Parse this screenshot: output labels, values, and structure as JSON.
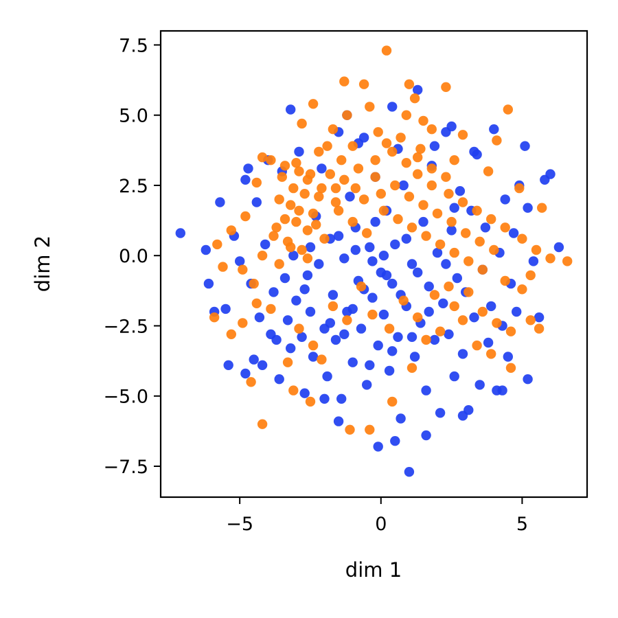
{
  "chart_data": {
    "type": "scatter",
    "title": "",
    "xlabel": "dim 1",
    "ylabel": "dim 2",
    "xlim": [
      -7.8,
      7.3
    ],
    "ylim": [
      -8.6,
      8.0
    ],
    "xticks": [
      -5,
      0,
      5
    ],
    "xtick_labels": [
      "−5",
      "0",
      "5"
    ],
    "yticks": [
      -7.5,
      -5.0,
      -2.5,
      0.0,
      2.5,
      5.0,
      7.5
    ],
    "ytick_labels": [
      "−7.5",
      "−5.0",
      "−2.5",
      "0.0",
      "2.5",
      "5.0",
      "7.5"
    ],
    "grid": false,
    "legend": "none",
    "series": [
      {
        "color": "#1f3ff0",
        "points": [
          [
            -7.1,
            0.8
          ],
          [
            -6.2,
            0.2
          ],
          [
            -6.1,
            -1.0
          ],
          [
            -5.9,
            -2.0
          ],
          [
            -5.7,
            1.9
          ],
          [
            -5.5,
            -1.9
          ],
          [
            -5.4,
            -3.9
          ],
          [
            -5.2,
            0.7
          ],
          [
            -5.0,
            -0.2
          ],
          [
            -4.8,
            2.7
          ],
          [
            -4.7,
            3.1
          ],
          [
            -4.6,
            -1.0
          ],
          [
            -4.5,
            -3.7
          ],
          [
            -4.4,
            1.9
          ],
          [
            -4.3,
            -2.2
          ],
          [
            -4.2,
            -3.9
          ],
          [
            -4.1,
            0.4
          ],
          [
            -4.0,
            3.4
          ],
          [
            -3.9,
            -2.8
          ],
          [
            -3.8,
            -1.3
          ],
          [
            -3.7,
            -3.0
          ],
          [
            -3.6,
            -4.4
          ],
          [
            -3.5,
            3.0
          ],
          [
            -3.4,
            -0.8
          ],
          [
            -3.3,
            -2.3
          ],
          [
            -3.2,
            -3.3
          ],
          [
            -3.1,
            0.0
          ],
          [
            -3.0,
            -1.6
          ],
          [
            -2.9,
            3.7
          ],
          [
            -2.8,
            -2.9
          ],
          [
            -2.7,
            -4.9
          ],
          [
            -2.6,
            -0.7
          ],
          [
            -2.5,
            -2.0
          ],
          [
            -2.4,
            -3.6
          ],
          [
            -2.3,
            1.4
          ],
          [
            -2.2,
            -0.3
          ],
          [
            -2.1,
            3.1
          ],
          [
            -2.0,
            -2.6
          ],
          [
            -1.9,
            -4.3
          ],
          [
            -1.8,
            0.6
          ],
          [
            -1.7,
            -1.4
          ],
          [
            -1.6,
            -3.0
          ],
          [
            -1.5,
            4.4
          ],
          [
            -1.4,
            -5.1
          ],
          [
            -1.3,
            -0.1
          ],
          [
            -1.2,
            -2.0
          ],
          [
            -1.1,
            2.1
          ],
          [
            -1.0,
            -3.8
          ],
          [
            -0.9,
            1.0
          ],
          [
            -0.8,
            -0.9
          ],
          [
            -0.7,
            -2.6
          ],
          [
            -0.6,
            4.2
          ],
          [
            -0.5,
            -4.6
          ],
          [
            -0.4,
            0.3
          ],
          [
            -0.3,
            -1.5
          ],
          [
            -0.2,
            2.8
          ],
          [
            -0.1,
            -3.2
          ],
          [
            0.0,
            -0.6
          ],
          [
            0.1,
            -2.1
          ],
          [
            0.2,
            1.6
          ],
          [
            0.3,
            -4.1
          ],
          [
            0.4,
            -1.0
          ],
          [
            0.5,
            0.4
          ],
          [
            0.6,
            -2.9
          ],
          [
            0.7,
            -5.8
          ],
          [
            0.8,
            2.5
          ],
          [
            0.9,
            -1.8
          ],
          [
            1.0,
            -7.7
          ],
          [
            1.1,
            -0.3
          ],
          [
            1.2,
            -3.6
          ],
          [
            1.3,
            5.9
          ],
          [
            1.4,
            -2.4
          ],
          [
            1.5,
            1.2
          ],
          [
            1.6,
            -4.8
          ],
          [
            1.7,
            -1.1
          ],
          [
            1.8,
            3.2
          ],
          [
            1.9,
            -3.0
          ],
          [
            2.0,
            0.1
          ],
          [
            2.1,
            -5.6
          ],
          [
            2.2,
            -1.7
          ],
          [
            2.3,
            4.4
          ],
          [
            2.4,
            -2.8
          ],
          [
            2.5,
            0.9
          ],
          [
            2.6,
            -4.3
          ],
          [
            2.7,
            -0.8
          ],
          [
            2.8,
            2.3
          ],
          [
            2.9,
            -3.5
          ],
          [
            3.0,
            -1.3
          ],
          [
            3.1,
            -5.5
          ],
          [
            3.2,
            1.6
          ],
          [
            3.3,
            -2.2
          ],
          [
            3.4,
            3.6
          ],
          [
            3.5,
            -4.6
          ],
          [
            3.6,
            -0.5
          ],
          [
            3.7,
            1.0
          ],
          [
            3.8,
            -3.1
          ],
          [
            3.9,
            -1.8
          ],
          [
            4.0,
            4.5
          ],
          [
            4.1,
            -4.8
          ],
          [
            4.2,
            0.1
          ],
          [
            4.3,
            -2.5
          ],
          [
            4.4,
            2.0
          ],
          [
            4.5,
            -3.6
          ],
          [
            4.6,
            -1.0
          ],
          [
            4.7,
            0.8
          ],
          [
            4.8,
            -2.0
          ],
          [
            4.9,
            2.5
          ],
          [
            5.1,
            3.9
          ],
          [
            5.2,
            1.7
          ],
          [
            5.4,
            -0.2
          ],
          [
            5.6,
            -2.2
          ],
          [
            5.8,
            2.7
          ],
          [
            6.0,
            2.9
          ],
          [
            6.3,
            0.3
          ],
          [
            -0.1,
            -6.8
          ],
          [
            0.5,
            -6.6
          ],
          [
            1.6,
            -6.4
          ],
          [
            -1.5,
            -5.9
          ],
          [
            -2.0,
            -5.1
          ],
          [
            2.9,
            -5.7
          ],
          [
            4.3,
            -4.8
          ],
          [
            5.2,
            -4.4
          ],
          [
            -4.8,
            -4.2
          ],
          [
            -0.8,
            4.0
          ],
          [
            0.6,
            3.8
          ],
          [
            1.9,
            3.9
          ],
          [
            -3.2,
            5.2
          ],
          [
            -1.2,
            5.0
          ],
          [
            0.4,
            5.3
          ],
          [
            2.5,
            4.6
          ],
          [
            3.3,
            3.7
          ],
          [
            -0.3,
            -0.2
          ],
          [
            0.2,
            -0.7
          ],
          [
            -0.6,
            -1.2
          ],
          [
            0.7,
            -1.4
          ],
          [
            -1.0,
            -1.9
          ],
          [
            0.9,
            0.6
          ],
          [
            -1.5,
            0.7
          ],
          [
            1.3,
            -0.6
          ],
          [
            -0.2,
            1.2
          ],
          [
            0.1,
            0.0
          ],
          [
            -0.9,
            0.2
          ],
          [
            1.7,
            -2.0
          ],
          [
            -1.8,
            -2.4
          ],
          [
            2.3,
            -0.3
          ],
          [
            -2.5,
            0.3
          ],
          [
            0.4,
            -3.4
          ],
          [
            -0.4,
            -3.9
          ],
          [
            1.1,
            -2.9
          ],
          [
            -1.3,
            -2.8
          ],
          [
            2.6,
            1.7
          ],
          [
            -2.7,
            -1.2
          ]
        ]
      },
      {
        "color": "#ff7f0e",
        "points": [
          [
            0.2,
            7.3
          ],
          [
            -1.3,
            6.2
          ],
          [
            -0.6,
            6.1
          ],
          [
            1.0,
            6.1
          ],
          [
            2.3,
            6.0
          ],
          [
            1.2,
            5.6
          ],
          [
            -2.4,
            5.4
          ],
          [
            -1.2,
            5.0
          ],
          [
            -0.4,
            5.3
          ],
          [
            0.9,
            5.0
          ],
          [
            1.5,
            4.8
          ],
          [
            4.5,
            5.2
          ],
          [
            -2.8,
            4.7
          ],
          [
            -1.7,
            4.5
          ],
          [
            -0.1,
            4.4
          ],
          [
            1.8,
            4.5
          ],
          [
            2.9,
            4.3
          ],
          [
            4.1,
            4.1
          ],
          [
            -4.2,
            3.5
          ],
          [
            -3.4,
            3.2
          ],
          [
            -2.9,
            3.0
          ],
          [
            -2.6,
            2.7
          ],
          [
            -3.1,
            2.4
          ],
          [
            -2.7,
            2.2
          ],
          [
            -3.6,
            2.0
          ],
          [
            -3.2,
            1.8
          ],
          [
            -2.4,
            1.5
          ],
          [
            -3.0,
            1.2
          ],
          [
            -2.6,
            0.9
          ],
          [
            -3.8,
            0.7
          ],
          [
            -3.3,
            0.5
          ],
          [
            -2.8,
            0.2
          ],
          [
            -4.2,
            0.0
          ],
          [
            -3.6,
            -0.3
          ],
          [
            -1.9,
            3.9
          ],
          [
            -1.4,
            3.4
          ],
          [
            -0.8,
            3.1
          ],
          [
            -0.2,
            2.8
          ],
          [
            0.4,
            3.7
          ],
          [
            0.9,
            3.3
          ],
          [
            1.3,
            2.9
          ],
          [
            1.8,
            2.5
          ],
          [
            2.4,
            2.2
          ],
          [
            2.9,
            1.9
          ],
          [
            3.4,
            1.6
          ],
          [
            3.9,
            1.3
          ],
          [
            4.4,
            1.0
          ],
          [
            5.0,
            0.6
          ],
          [
            5.5,
            0.2
          ],
          [
            6.0,
            -0.1
          ],
          [
            6.6,
            -0.2
          ],
          [
            -5.8,
            0.4
          ],
          [
            -5.6,
            -0.4
          ],
          [
            -5.9,
            -2.2
          ],
          [
            -5.3,
            -2.8
          ],
          [
            -4.9,
            -2.4
          ],
          [
            -4.4,
            -1.7
          ],
          [
            -4.6,
            -4.5
          ],
          [
            -4.2,
            -6.0
          ],
          [
            -3.1,
            -4.8
          ],
          [
            -2.5,
            -5.2
          ],
          [
            -2.1,
            -3.7
          ],
          [
            -1.1,
            -6.2
          ],
          [
            -0.4,
            -6.2
          ],
          [
            0.4,
            -5.2
          ],
          [
            1.1,
            -4.0
          ],
          [
            1.6,
            -3.0
          ],
          [
            2.1,
            -2.7
          ],
          [
            2.6,
            -1.8
          ],
          [
            3.1,
            -1.3
          ],
          [
            3.6,
            -2.0
          ],
          [
            4.1,
            -2.4
          ],
          [
            4.6,
            -2.7
          ],
          [
            5.0,
            -1.2
          ],
          [
            5.3,
            -0.7
          ],
          [
            5.6,
            -2.6
          ],
          [
            4.6,
            -4.0
          ],
          [
            -1.6,
            2.4
          ],
          [
            -0.6,
            2.0
          ],
          [
            0.1,
            1.6
          ],
          [
            0.6,
            1.3
          ],
          [
            1.1,
            1.0
          ],
          [
            1.6,
            0.7
          ],
          [
            2.1,
            0.4
          ],
          [
            2.6,
            0.1
          ],
          [
            3.1,
            -0.2
          ],
          [
            3.6,
            -0.5
          ],
          [
            -4.8,
            1.4
          ],
          [
            -4.4,
            2.6
          ],
          [
            -3.9,
            3.4
          ],
          [
            -2.2,
            3.7
          ],
          [
            -1.0,
            3.9
          ],
          [
            0.2,
            4.0
          ],
          [
            1.4,
            3.8
          ],
          [
            2.6,
            3.4
          ],
          [
            3.8,
            3.0
          ],
          [
            4.9,
            2.4
          ],
          [
            5.7,
            1.7
          ],
          [
            -5.3,
            0.9
          ],
          [
            -4.9,
            -0.5
          ],
          [
            -4.5,
            -1.0
          ],
          [
            -3.9,
            -1.9
          ],
          [
            -3.3,
            -3.8
          ],
          [
            -2.9,
            -2.6
          ],
          [
            -2.4,
            -3.2
          ],
          [
            -1.7,
            -1.8
          ],
          [
            -1.2,
            -2.3
          ],
          [
            -0.7,
            -1.1
          ],
          [
            -0.3,
            -2.1
          ],
          [
            0.3,
            -2.6
          ],
          [
            0.8,
            -1.6
          ],
          [
            1.3,
            -2.2
          ],
          [
            1.9,
            -1.4
          ],
          [
            2.4,
            -1.1
          ],
          [
            2.9,
            -2.3
          ],
          [
            3.4,
            -3.2
          ],
          [
            3.9,
            -3.5
          ],
          [
            4.4,
            -0.9
          ],
          [
            5.3,
            -2.3
          ],
          [
            -3.5,
            2.8
          ],
          [
            -3.0,
            3.3
          ],
          [
            -2.5,
            2.9
          ],
          [
            -2.1,
            2.4
          ],
          [
            -3.4,
            1.3
          ],
          [
            -2.9,
            1.6
          ],
          [
            -2.3,
            1.1
          ],
          [
            -3.7,
            1.0
          ],
          [
            -3.2,
            0.3
          ],
          [
            -2.6,
            -0.1
          ],
          [
            -2.0,
            0.6
          ],
          [
            -1.5,
            1.6
          ],
          [
            -1.0,
            1.2
          ],
          [
            -0.5,
            0.8
          ],
          [
            0.0,
            2.2
          ],
          [
            0.5,
            2.5
          ],
          [
            1.0,
            2.1
          ],
          [
            1.5,
            1.8
          ],
          [
            2.0,
            1.5
          ],
          [
            2.5,
            1.2
          ],
          [
            3.0,
            0.8
          ],
          [
            3.5,
            0.5
          ],
          [
            4.0,
            0.2
          ],
          [
            1.3,
            3.5
          ],
          [
            1.8,
            3.1
          ],
          [
            2.3,
            2.8
          ],
          [
            -0.2,
            3.4
          ],
          [
            0.7,
            4.2
          ],
          [
            -1.8,
            2.9
          ],
          [
            -1.3,
            2.7
          ],
          [
            -0.9,
            2.4
          ],
          [
            -1.6,
            1.9
          ],
          [
            -2.2,
            2.1
          ]
        ]
      }
    ]
  }
}
